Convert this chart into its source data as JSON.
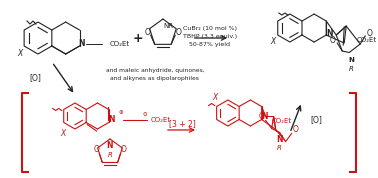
{
  "bg_color": "#ffffff",
  "black_color": "#222222",
  "red_color": "#cc1111",
  "conditions_line1": "CuBr₂ (10 mol %)",
  "conditions_line2": "TBHP (3.3 equiv.)",
  "conditions_line3": "50-87% yield",
  "note_line1": "and maleic anhydride, quinones,",
  "note_line2": "and alkynes as dipolarophiles"
}
